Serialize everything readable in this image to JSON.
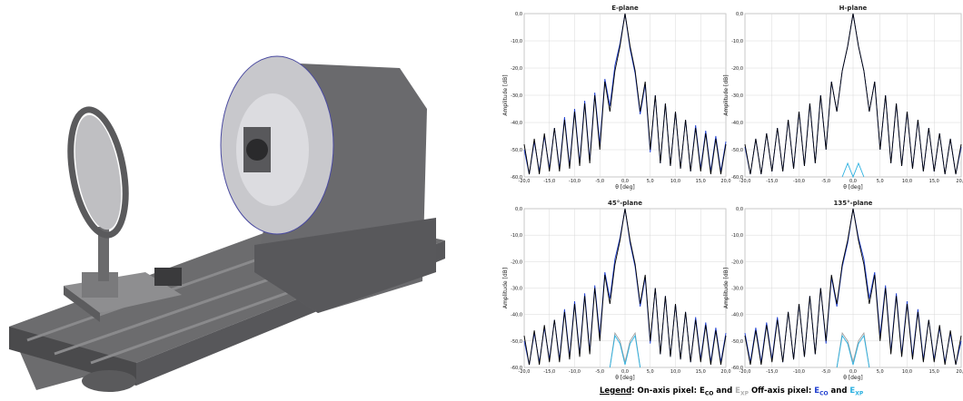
{
  "chart_data": [
    {
      "type": "line",
      "title": "E-plane",
      "xlabel": "θ [deg]",
      "ylabel": "Amplitude [dB]",
      "x": [
        -20,
        -19,
        -18,
        -17,
        -16,
        -15,
        -14,
        -13,
        -12,
        -11,
        -10,
        -9,
        -8,
        -7,
        -6,
        -5,
        -4,
        -3,
        -2,
        -1,
        0,
        1,
        2,
        3,
        4,
        5,
        6,
        7,
        8,
        9,
        10,
        11,
        12,
        13,
        14,
        15,
        16,
        17,
        18,
        19,
        20
      ],
      "xlim": [
        -20,
        20
      ],
      "ylim": [
        -60,
        0
      ],
      "grid": true,
      "xticks": [
        {
          "value": -20,
          "label": "-20,0"
        },
        {
          "value": -15,
          "label": "-15,0"
        },
        {
          "value": -10,
          "label": "-10,0"
        },
        {
          "value": -5,
          "label": "-5,0"
        },
        {
          "value": 0,
          "label": "0,0"
        },
        {
          "value": 5,
          "label": "5,0"
        },
        {
          "value": 10,
          "label": "10,0"
        },
        {
          "value": 15,
          "label": "15,0"
        },
        {
          "value": 20,
          "label": "20,0"
        }
      ],
      "yticks": [
        {
          "value": 0,
          "label": "0,0"
        },
        {
          "value": -10,
          "label": "-10,0"
        },
        {
          "value": -20,
          "label": "-20,0"
        },
        {
          "value": -30,
          "label": "-30,0"
        },
        {
          "value": -40,
          "label": "-40,0"
        },
        {
          "value": -50,
          "label": "-50,0"
        },
        {
          "value": -60,
          "label": "-60,0"
        }
      ],
      "series": [
        {
          "color": "#1f3fd0",
          "values": [
            -50,
            -59,
            -47,
            -58,
            -45,
            -57,
            -42,
            -57,
            -38,
            -56,
            -35,
            -55,
            -32,
            -54,
            -29,
            -48,
            -24,
            -34,
            -19,
            -11,
            0,
            -13,
            -22,
            -37,
            -26,
            -51,
            -30,
            -55,
            -33,
            -56,
            -36,
            -57,
            -39,
            -58,
            -41,
            -57,
            -43,
            -58,
            -45,
            -58,
            -47
          ]
        },
        {
          "color": "#000000",
          "values": [
            -48,
            -59,
            -46,
            -59,
            -44,
            -58,
            -42,
            -58,
            -39,
            -57,
            -36,
            -56,
            -33,
            -55,
            -30,
            -50,
            -25,
            -36,
            -21,
            -12,
            0,
            -12,
            -21,
            -36,
            -25,
            -50,
            -30,
            -55,
            -33,
            -56,
            -36,
            -57,
            -39,
            -58,
            -42,
            -58,
            -44,
            -59,
            -46,
            -59,
            -48
          ]
        }
      ]
    },
    {
      "type": "line",
      "title": "H-plane",
      "xlabel": "θ [deg]",
      "ylabel": "Amplitude [dB]",
      "x": [
        -20,
        -19,
        -18,
        -17,
        -16,
        -15,
        -14,
        -13,
        -12,
        -11,
        -10,
        -9,
        -8,
        -7,
        -6,
        -5,
        -4,
        -3,
        -2,
        -1,
        0,
        1,
        2,
        3,
        4,
        5,
        6,
        7,
        8,
        9,
        10,
        11,
        12,
        13,
        14,
        15,
        16,
        17,
        18,
        19,
        20
      ],
      "xlim": [
        -20,
        20
      ],
      "ylim": [
        -60,
        0
      ],
      "grid": true,
      "xticks": [
        {
          "value": -20,
          "label": "-20,0"
        },
        {
          "value": -15,
          "label": "-15,0"
        },
        {
          "value": -10,
          "label": "-10,0"
        },
        {
          "value": -5,
          "label": "-5,0"
        },
        {
          "value": 0,
          "label": "0,0"
        },
        {
          "value": 5,
          "label": "5,0"
        },
        {
          "value": 10,
          "label": "10,0"
        },
        {
          "value": 15,
          "label": "15,0"
        },
        {
          "value": 20,
          "label": "20,0"
        }
      ],
      "yticks": [
        {
          "value": 0,
          "label": "0,0"
        },
        {
          "value": -10,
          "label": "-10,0"
        },
        {
          "value": -20,
          "label": "-20,0"
        },
        {
          "value": -30,
          "label": "-30,0"
        },
        {
          "value": -40,
          "label": "-40,0"
        },
        {
          "value": -50,
          "label": "-50,0"
        },
        {
          "value": -60,
          "label": "-60,0"
        }
      ],
      "series": [
        {
          "color": "#1f3fd0",
          "values": [
            -49,
            -59,
            -46,
            -59,
            -44,
            -58,
            -42,
            -58,
            -39,
            -57,
            -36,
            -56,
            -33,
            -55,
            -30,
            -50,
            -25,
            -36,
            -21,
            -12,
            0,
            -12,
            -21,
            -36,
            -25,
            -50,
            -30,
            -55,
            -33,
            -56,
            -36,
            -57,
            -39,
            -58,
            -42,
            -58,
            -44,
            -59,
            -46,
            -59,
            -49
          ]
        },
        {
          "color": "#000000",
          "values": [
            -48,
            -59,
            -46,
            -59,
            -44,
            -58,
            -42,
            -58,
            -39,
            -57,
            -36,
            -56,
            -33,
            -55,
            -30,
            -50,
            -25,
            -36,
            -21,
            -12,
            0,
            -12,
            -21,
            -36,
            -25,
            -50,
            -30,
            -55,
            -33,
            -56,
            -36,
            -57,
            -39,
            -58,
            -42,
            -58,
            -44,
            -59,
            -46,
            -59,
            -48
          ]
        },
        {
          "color": "#2ab0e0",
          "x": [
            -2,
            -1,
            0,
            1,
            2
          ],
          "values": [
            -60,
            -55,
            -60,
            -55,
            -60
          ]
        }
      ]
    },
    {
      "type": "line",
      "title": "45°-plane",
      "xlabel": "θ [deg]",
      "ylabel": "Amplitude [dB]",
      "x": [
        -20,
        -19,
        -18,
        -17,
        -16,
        -15,
        -14,
        -13,
        -12,
        -11,
        -10,
        -9,
        -8,
        -7,
        -6,
        -5,
        -4,
        -3,
        -2,
        -1,
        0,
        1,
        2,
        3,
        4,
        5,
        6,
        7,
        8,
        9,
        10,
        11,
        12,
        13,
        14,
        15,
        16,
        17,
        18,
        19,
        20
      ],
      "xlim": [
        -20,
        20
      ],
      "ylim": [
        -60,
        0
      ],
      "grid": true,
      "xticks": [
        {
          "value": -20,
          "label": "-20,0"
        },
        {
          "value": -15,
          "label": "-15,0"
        },
        {
          "value": -10,
          "label": "-10,0"
        },
        {
          "value": -5,
          "label": "-5,0"
        },
        {
          "value": 0,
          "label": "0,0"
        },
        {
          "value": 5,
          "label": "5,0"
        },
        {
          "value": 10,
          "label": "10,0"
        },
        {
          "value": 15,
          "label": "15,0"
        },
        {
          "value": 20,
          "label": "20,0"
        }
      ],
      "yticks": [
        {
          "value": 0,
          "label": "0,0"
        },
        {
          "value": -10,
          "label": "-10,0"
        },
        {
          "value": -20,
          "label": "-20,0"
        },
        {
          "value": -30,
          "label": "-30,0"
        },
        {
          "value": -40,
          "label": "-40,0"
        },
        {
          "value": -50,
          "label": "-50,0"
        },
        {
          "value": -60,
          "label": "-60,0"
        }
      ],
      "series": [
        {
          "color": "#1f3fd0",
          "values": [
            -50,
            -59,
            -47,
            -58,
            -45,
            -57,
            -42,
            -57,
            -38,
            -56,
            -35,
            -55,
            -32,
            -54,
            -29,
            -48,
            -24,
            -34,
            -19,
            -11,
            0,
            -13,
            -22,
            -37,
            -26,
            -51,
            -30,
            -55,
            -33,
            -56,
            -36,
            -57,
            -39,
            -58,
            -41,
            -57,
            -43,
            -58,
            -45,
            -58,
            -47
          ]
        },
        {
          "color": "#000000",
          "values": [
            -48,
            -59,
            -46,
            -59,
            -44,
            -58,
            -42,
            -58,
            -39,
            -57,
            -36,
            -56,
            -33,
            -55,
            -30,
            -50,
            -25,
            -36,
            -21,
            -12,
            0,
            -12,
            -21,
            -36,
            -25,
            -50,
            -30,
            -55,
            -33,
            -56,
            -36,
            -57,
            -39,
            -58,
            -42,
            -58,
            -44,
            -59,
            -46,
            -59,
            -48
          ]
        },
        {
          "color": "#a0a0a0",
          "x": [
            -3,
            -2,
            -1,
            0,
            1,
            2,
            3
          ],
          "values": [
            -60,
            -47,
            -50,
            -58,
            -50,
            -47,
            -60
          ]
        },
        {
          "color": "#2ab0e0",
          "x": [
            -3,
            -2,
            -1,
            0,
            1,
            2,
            3
          ],
          "values": [
            -60,
            -48,
            -51,
            -59,
            -51,
            -48,
            -60
          ]
        }
      ]
    },
    {
      "type": "line",
      "title": "135°-plane",
      "xlabel": "θ [deg]",
      "ylabel": "Amplitude [dB]",
      "x": [
        -20,
        -19,
        -18,
        -17,
        -16,
        -15,
        -14,
        -13,
        -12,
        -11,
        -10,
        -9,
        -8,
        -7,
        -6,
        -5,
        -4,
        -3,
        -2,
        -1,
        0,
        1,
        2,
        3,
        4,
        5,
        6,
        7,
        8,
        9,
        10,
        11,
        12,
        13,
        14,
        15,
        16,
        17,
        18,
        19,
        20
      ],
      "xlim": [
        -20,
        20
      ],
      "ylim": [
        -60,
        0
      ],
      "grid": true,
      "xticks": [
        {
          "value": -20,
          "label": "-20,0"
        },
        {
          "value": -15,
          "label": "-15,0"
        },
        {
          "value": -10,
          "label": "-10,0"
        },
        {
          "value": -5,
          "label": "-5,0"
        },
        {
          "value": 0,
          "label": "0,0"
        },
        {
          "value": 5,
          "label": "5,0"
        },
        {
          "value": 10,
          "label": "10,0"
        },
        {
          "value": 15,
          "label": "15,0"
        },
        {
          "value": 20,
          "label": "20,0"
        }
      ],
      "yticks": [
        {
          "value": 0,
          "label": "0,0"
        },
        {
          "value": -10,
          "label": "-10,0"
        },
        {
          "value": -20,
          "label": "-20,0"
        },
        {
          "value": -30,
          "label": "-30,0"
        },
        {
          "value": -40,
          "label": "-40,0"
        },
        {
          "value": -50,
          "label": "-50,0"
        },
        {
          "value": -60,
          "label": "-60,0"
        }
      ],
      "series": [
        {
          "color": "#1f3fd0",
          "values": [
            -47,
            -58,
            -45,
            -58,
            -43,
            -57,
            -41,
            -58,
            -39,
            -57,
            -36,
            -56,
            -33,
            -55,
            -30,
            -51,
            -26,
            -37,
            -22,
            -13,
            0,
            -11,
            -19,
            -34,
            -24,
            -48,
            -29,
            -54,
            -32,
            -55,
            -35,
            -56,
            -38,
            -57,
            -42,
            -57,
            -45,
            -58,
            -47,
            -59,
            -50
          ]
        },
        {
          "color": "#000000",
          "values": [
            -48,
            -59,
            -46,
            -59,
            -44,
            -58,
            -42,
            -58,
            -39,
            -57,
            -36,
            -56,
            -33,
            -55,
            -30,
            -50,
            -25,
            -36,
            -21,
            -12,
            0,
            -12,
            -21,
            -36,
            -25,
            -50,
            -30,
            -55,
            -33,
            -56,
            -36,
            -57,
            -39,
            -58,
            -42,
            -58,
            -44,
            -59,
            -46,
            -59,
            -48
          ]
        },
        {
          "color": "#a0a0a0",
          "x": [
            -3,
            -2,
            -1,
            0,
            1,
            2,
            3
          ],
          "values": [
            -60,
            -47,
            -50,
            -58,
            -50,
            -47,
            -60
          ]
        },
        {
          "color": "#2ab0e0",
          "x": [
            -3,
            -2,
            -1,
            0,
            1,
            2,
            3
          ],
          "values": [
            -60,
            -48,
            -51,
            -59,
            -51,
            -48,
            -60
          ]
        }
      ]
    }
  ],
  "legend": [
    "Legend",
    ": On-axis pixel: ",
    "E",
    "CO",
    " and ",
    "E",
    "XP",
    " Off-axis pixel: ",
    "E",
    "CO",
    " and ",
    "E",
    "XP"
  ]
}
